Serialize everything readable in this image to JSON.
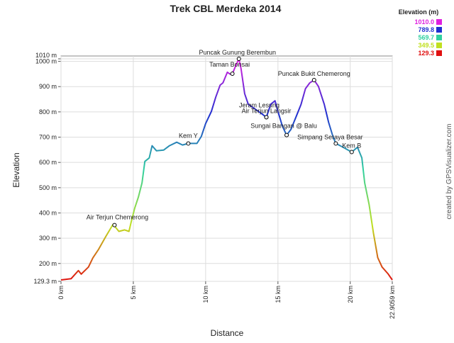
{
  "chart_data": {
    "type": "line",
    "title": "Trek CBL Merdeka 2014",
    "x_label": "Distance",
    "y_label": "Elevation",
    "credit": "created by GPSVisualizer.com",
    "xlim": [
      0,
      22.9059
    ],
    "ylim": [
      129.3,
      1010
    ],
    "xticks": [
      {
        "value": 0,
        "label": "0 km"
      },
      {
        "value": 5,
        "label": "5 km"
      },
      {
        "value": 10,
        "label": "10 km"
      },
      {
        "value": 15,
        "label": "15 km"
      },
      {
        "value": 20,
        "label": "20 km"
      },
      {
        "value": 22.9059,
        "label": "22.9059 km"
      }
    ],
    "yticks": [
      {
        "value": 129.3,
        "label": "129.3 m"
      },
      {
        "value": 200,
        "label": "200 m"
      },
      {
        "value": 300,
        "label": "300 m"
      },
      {
        "value": 400,
        "label": "400 m"
      },
      {
        "value": 500,
        "label": "500 m"
      },
      {
        "value": 600,
        "label": "600 m"
      },
      {
        "value": 700,
        "label": "700 m"
      },
      {
        "value": 800,
        "label": "800 m"
      },
      {
        "value": 900,
        "label": "900 m"
      },
      {
        "value": 1000,
        "label": "1000 m"
      },
      {
        "value": 1010,
        "label": "1010 m"
      }
    ],
    "grid": true,
    "legend": {
      "title": "Elevation (m)",
      "position": "top-right",
      "entries": [
        {
          "value": 1010,
          "label": "1010.0",
          "color": "#e020e0"
        },
        {
          "value": 789.8,
          "label": "789.8",
          "color": "#2030d0"
        },
        {
          "value": 569.7,
          "label": "569.7",
          "color": "#30d0a0"
        },
        {
          "value": 349.5,
          "label": "349.5",
          "color": "#c0e020"
        },
        {
          "value": 129.3,
          "label": "129.3",
          "color": "#e01010"
        }
      ]
    },
    "series": [
      {
        "name": "Elevation",
        "x": [
          0,
          0.7,
          1.2,
          1.4,
          1.9,
          2.2,
          2.6,
          3.1,
          3.6,
          4.0,
          4.4,
          4.7,
          4.85,
          5.1,
          5.35,
          5.6,
          5.8,
          6.1,
          6.3,
          6.6,
          7.1,
          7.5,
          8.0,
          8.4,
          8.8,
          9.4,
          9.7,
          10.0,
          10.4,
          10.7,
          11.0,
          11.2,
          11.5,
          11.7,
          11.85,
          12.1,
          12.3,
          12.45,
          12.7,
          12.95,
          13.3,
          13.8,
          14.2,
          14.5,
          14.8,
          15.0,
          15.3,
          15.6,
          15.9,
          16.3,
          16.6,
          16.9,
          17.2,
          17.5,
          17.8,
          18.2,
          18.5,
          18.8,
          19.0,
          19.5,
          20.1,
          20.5,
          20.8,
          21.0,
          21.3,
          21.6,
          21.9,
          22.2,
          22.6,
          22.9059
        ],
        "values": [
          135,
          140,
          172,
          158,
          186,
          222,
          256,
          307,
          355,
          327,
          333,
          327,
          364,
          420,
          463,
          519,
          604,
          618,
          666,
          646,
          649,
          666,
          680,
          669,
          675,
          675,
          703,
          754,
          802,
          858,
          906,
          915,
          957,
          949,
          951,
          985,
          1010,
          971,
          872,
          830,
          816,
          796,
          779,
          830,
          844,
          802,
          745,
          708,
          731,
          787,
          830,
          892,
          915,
          926,
          901,
          830,
          759,
          703,
          675,
          660,
          641,
          660,
          618,
          519,
          434,
          321,
          223,
          186,
          160,
          135
        ]
      }
    ],
    "annotations": [
      {
        "label": "Air Terjun Chemerong",
        "x": 3.7,
        "y": 352
      },
      {
        "label": "Kem Y",
        "x": 8.8,
        "y": 675
      },
      {
        "label": "Taman Bonsai",
        "x": 11.85,
        "y": 951
      },
      {
        "label": "Puncak Gunung Berembun",
        "x": 12.3,
        "y": 1010
      },
      {
        "label": "Jeram Lesung",
        "x": 14.2,
        "y": 779
      },
      {
        "label": "Air Terjun Langsir",
        "x": 14.2,
        "y": 779
      },
      {
        "label": "Sungai Bangan @ Balu",
        "x": 15.6,
        "y": 708
      },
      {
        "label": "Puncak Bukit Chemerong",
        "x": 17.5,
        "y": 926
      },
      {
        "label": "Simpang Seraya Besar",
        "x": 19.0,
        "y": 675
      },
      {
        "label": "Kem B",
        "x": 20.1,
        "y": 641
      }
    ]
  }
}
